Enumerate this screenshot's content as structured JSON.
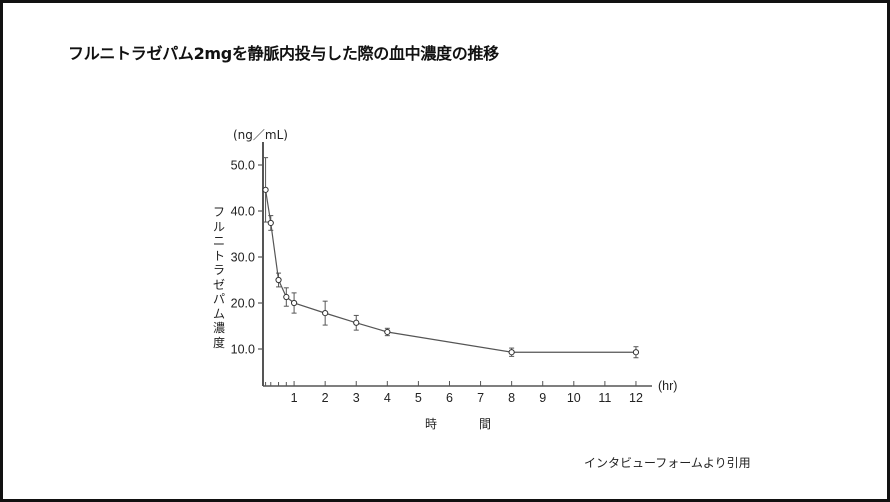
{
  "slide": {
    "title": "フルニトラゼパム2mgを静脈内投与した際の血中濃度の推移",
    "source_note": "インタビューフォームより引用"
  },
  "chart_data": {
    "type": "line",
    "title": "フルニトラゼパム2mgを静脈内投与した際の血中濃度の推移",
    "xlabel": "時 間",
    "xlabel_parts": [
      "時",
      "間"
    ],
    "x_unit": "(hr)",
    "ylabel": "フルニトラゼパム濃度",
    "y_unit": "(ng／mL)",
    "xlim": [
      0,
      12
    ],
    "ylim": [
      0,
      55
    ],
    "x_ticks": [
      1,
      2,
      3,
      4,
      5,
      6,
      7,
      8,
      9,
      10,
      11,
      12
    ],
    "x_minor_ticks": [
      0.083,
      0.25,
      0.5,
      0.75
    ],
    "y_ticks": [
      "10.0",
      "20.0",
      "30.0",
      "40.0",
      "50.0"
    ],
    "grid": false,
    "legend": null,
    "series": [
      {
        "name": "フルニトラゼパム濃度",
        "x": [
          0.083,
          0.25,
          0.5,
          0.75,
          1,
          2,
          3,
          4,
          8,
          12
        ],
        "y": [
          44.6,
          37.4,
          25.0,
          21.3,
          20.0,
          17.8,
          15.7,
          13.7,
          9.3,
          9.3
        ],
        "error": [
          7.0,
          1.6,
          1.5,
          2.0,
          2.2,
          2.6,
          1.6,
          0.8,
          0.9,
          1.2
        ],
        "marker": "open-circle",
        "color": "#555555"
      }
    ]
  }
}
